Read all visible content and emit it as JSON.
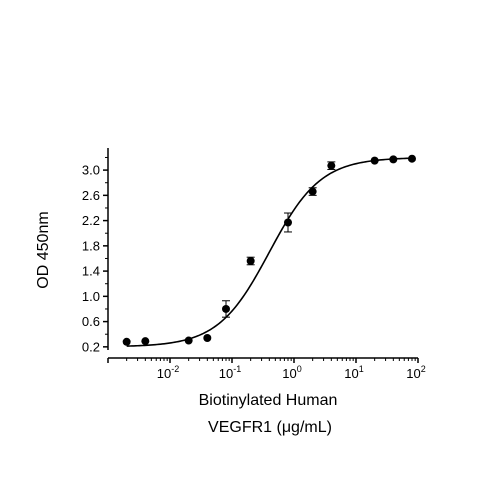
{
  "chart_data": {
    "type": "scatter",
    "title": "",
    "xlabel_lines": [
      "Biotinylated Human",
      "VEGFR1 (μg/mL)"
    ],
    "ylabel": "OD 450nm",
    "x_scale": "log",
    "xlim": [
      0.001,
      100
    ],
    "ylim": [
      0.15,
      3.35
    ],
    "x_ticks": [
      {
        "value": 0.01,
        "base": "10",
        "exp": "-2"
      },
      {
        "value": 0.1,
        "base": "10",
        "exp": "-1"
      },
      {
        "value": 1,
        "base": "10",
        "exp": "0"
      },
      {
        "value": 10,
        "base": "10",
        "exp": "1"
      },
      {
        "value": 100,
        "base": "10",
        "exp": "2"
      }
    ],
    "y_ticks": [
      "0.2",
      "0.6",
      "1.0",
      "1.4",
      "1.8",
      "2.2",
      "2.6",
      "3.0"
    ],
    "grid": false,
    "legend": "none",
    "series": [
      {
        "marker": "circle",
        "color": "#000000",
        "points": [
          {
            "x": 0.002,
            "y": 0.28,
            "err": 0.02
          },
          {
            "x": 0.004,
            "y": 0.29,
            "err": 0.02
          },
          {
            "x": 0.02,
            "y": 0.3,
            "err": 0.02
          },
          {
            "x": 0.04,
            "y": 0.34,
            "err": 0.02
          },
          {
            "x": 0.08,
            "y": 0.8,
            "err": 0.13
          },
          {
            "x": 0.2,
            "y": 1.56,
            "err": 0.06
          },
          {
            "x": 0.8,
            "y": 2.17,
            "err": 0.15
          },
          {
            "x": 2,
            "y": 2.66,
            "err": 0.06
          },
          {
            "x": 4,
            "y": 3.07,
            "err": 0.06
          },
          {
            "x": 20,
            "y": 3.15,
            "err": 0.02
          },
          {
            "x": 40,
            "y": 3.17,
            "err": 0.02
          },
          {
            "x": 80,
            "y": 3.18,
            "err": 0.02
          }
        ]
      }
    ],
    "fit_curve": {
      "model": "4PL",
      "bottom": 0.2,
      "top": 3.2,
      "ec50": 0.4,
      "hill": 1.05,
      "x_range": [
        0.002,
        80
      ],
      "color": "#000000"
    }
  }
}
